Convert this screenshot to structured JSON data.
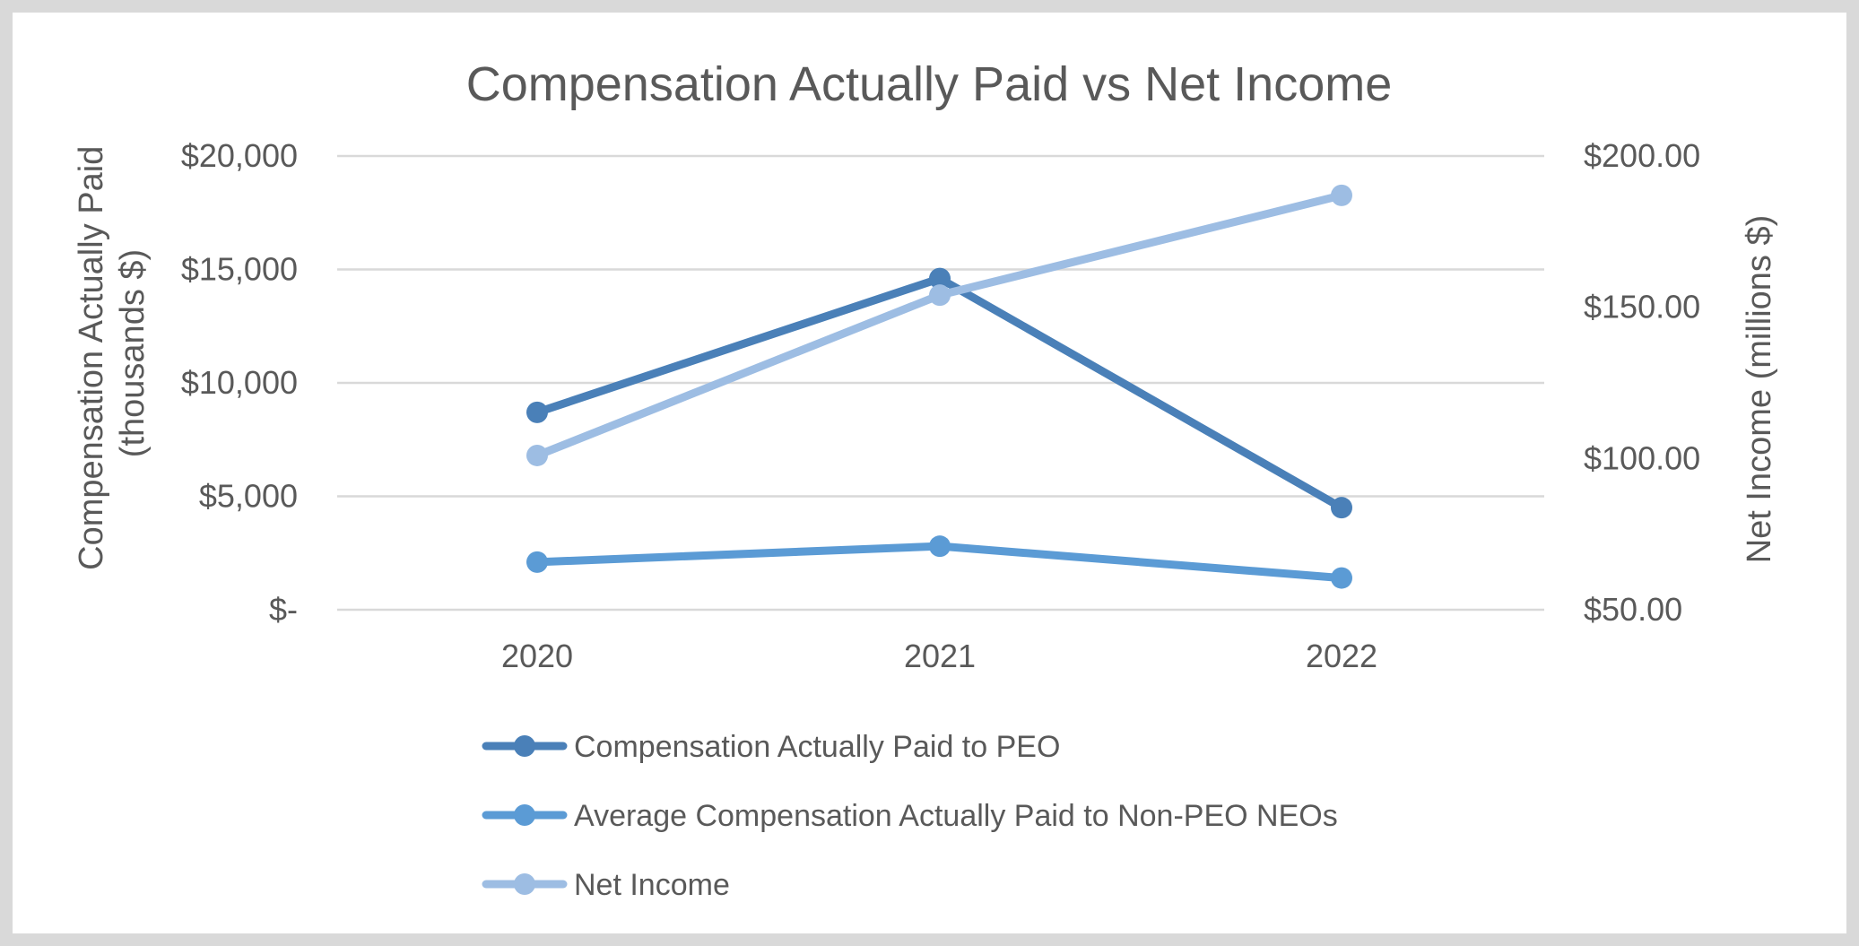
{
  "chart_data": {
    "type": "line",
    "title": "Compensation Actually Paid vs Net Income",
    "categories": [
      "2020",
      "2021",
      "2022"
    ],
    "y_left": {
      "label_line1": "Compensation Actually Paid",
      "label_line2": "(thousands $)",
      "range": [
        0,
        20000
      ],
      "ticks": [
        {
          "value": 0,
          "label": "$-"
        },
        {
          "value": 5000,
          "label": "$5,000"
        },
        {
          "value": 10000,
          "label": "$10,000"
        },
        {
          "value": 15000,
          "label": "$15,000"
        },
        {
          "value": 20000,
          "label": "$20,000"
        }
      ]
    },
    "y_right": {
      "label": "Net Income (millions $)",
      "range": [
        50,
        200
      ],
      "ticks": [
        {
          "value": 50,
          "label": "$50.00"
        },
        {
          "value": 100,
          "label": "$100.00"
        },
        {
          "value": 150,
          "label": "$150.00"
        },
        {
          "value": 200,
          "label": "$200.00"
        }
      ]
    },
    "grid": true,
    "legend_position": "bottom",
    "series": [
      {
        "name": "Compensation Actually Paid to PEO",
        "axis": "left",
        "color": "#4a80b8",
        "values": [
          8700,
          14600,
          4500
        ]
      },
      {
        "name": "Average Compensation Actually Paid to Non-PEO NEOs",
        "axis": "left",
        "color": "#5b9bd5",
        "values": [
          2100,
          2800,
          1400
        ]
      },
      {
        "name": "Net Income",
        "axis": "right",
        "color": "#9dbde3",
        "values": [
          101,
          154,
          187
        ]
      }
    ]
  }
}
